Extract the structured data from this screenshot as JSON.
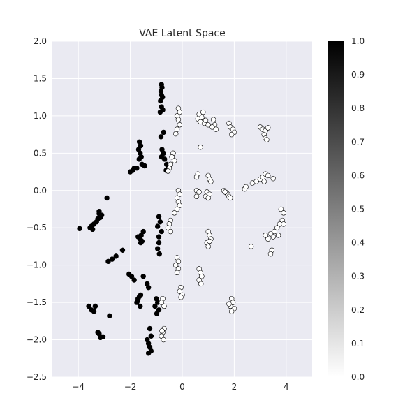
{
  "chart_data": {
    "type": "scatter",
    "title": "VAE Latent Space",
    "xlabel": "",
    "ylabel": "",
    "xlim": [
      -5,
      5
    ],
    "ylim": [
      -2.5,
      2.0
    ],
    "xticks": [
      -4,
      -2,
      0,
      2,
      4
    ],
    "xtick_labels": [
      "−4",
      "−2",
      "0",
      "2",
      "4"
    ],
    "yticks": [
      2.0,
      1.5,
      1.0,
      0.5,
      0.0,
      -0.5,
      -1.0,
      -1.5,
      -2.0,
      -2.5
    ],
    "ytick_labels": [
      "2.0",
      "1.5",
      "1.0",
      "0.5",
      "0.0",
      "−0.5",
      "−1.0",
      "−1.5",
      "−2.0",
      "−2.5"
    ],
    "grid": true,
    "plot_background": "#eaeaf2",
    "colorbar": {
      "range": [
        0.0,
        1.0
      ],
      "ticks": [
        "1.0",
        "0.9",
        "0.8",
        "0.7",
        "0.6",
        "0.5",
        "0.4",
        "0.3",
        "0.2",
        "0.1",
        "0.0"
      ],
      "colormap": "gray_r",
      "low_color": "#ffffff",
      "high_color": "#000000"
    },
    "series": [
      {
        "value": 1.0,
        "color": "#000000",
        "points": [
          [
            -0.8,
            1.42
          ],
          [
            -0.78,
            1.38
          ],
          [
            -0.82,
            1.33
          ],
          [
            -0.8,
            1.28
          ],
          [
            -0.76,
            1.25
          ],
          [
            -0.84,
            1.2
          ],
          [
            -0.8,
            1.12
          ],
          [
            -0.75,
            1.08
          ],
          [
            -0.85,
            1.05
          ],
          [
            -0.72,
            0.78
          ],
          [
            -0.82,
            0.72
          ],
          [
            -1.65,
            0.65
          ],
          [
            -1.6,
            0.6
          ],
          [
            -1.68,
            0.55
          ],
          [
            -1.62,
            0.5
          ],
          [
            -1.58,
            0.45
          ],
          [
            -1.66,
            0.42
          ],
          [
            -1.55,
            0.35
          ],
          [
            -1.45,
            0.33
          ],
          [
            -1.75,
            0.3
          ],
          [
            -1.85,
            0.3
          ],
          [
            -2.0,
            0.25
          ],
          [
            -1.9,
            0.27
          ],
          [
            -0.78,
            0.55
          ],
          [
            -0.72,
            0.5
          ],
          [
            -0.8,
            0.45
          ],
          [
            -0.68,
            0.42
          ],
          [
            -0.6,
            0.35
          ],
          [
            -0.55,
            0.3
          ],
          [
            -0.62,
            0.27
          ],
          [
            -3.2,
            -0.28
          ],
          [
            -3.1,
            -0.33
          ],
          [
            -3.25,
            -0.38
          ],
          [
            -3.3,
            -0.42
          ],
          [
            -3.4,
            -0.45
          ],
          [
            -3.5,
            -0.48
          ],
          [
            -3.55,
            -0.5
          ],
          [
            -3.45,
            -0.52
          ],
          [
            -3.15,
            -0.36
          ],
          [
            -3.2,
            -0.31
          ],
          [
            -2.9,
            -0.1
          ],
          [
            -3.95,
            -0.51
          ],
          [
            -0.9,
            -0.35
          ],
          [
            -0.85,
            -0.42
          ],
          [
            -0.95,
            -0.48
          ],
          [
            -0.8,
            -0.55
          ],
          [
            -0.9,
            -0.62
          ],
          [
            -1.5,
            -0.55
          ],
          [
            -1.58,
            -0.6
          ],
          [
            -1.62,
            -0.65
          ],
          [
            -1.7,
            -0.62
          ],
          [
            -1.55,
            -0.68
          ],
          [
            -1.6,
            -0.7
          ],
          [
            -2.3,
            -0.8
          ],
          [
            -2.55,
            -0.88
          ],
          [
            -2.7,
            -0.92
          ],
          [
            -2.85,
            -0.95
          ],
          [
            -0.9,
            -0.7
          ],
          [
            -0.95,
            -0.78
          ],
          [
            -0.88,
            -0.85
          ],
          [
            -2.05,
            -1.12
          ],
          [
            -1.95,
            -1.15
          ],
          [
            -1.85,
            -1.2
          ],
          [
            -1.5,
            -1.15
          ],
          [
            -1.35,
            -1.25
          ],
          [
            -1.3,
            -1.3
          ],
          [
            -1.65,
            -1.42
          ],
          [
            -1.7,
            -1.45
          ],
          [
            -1.75,
            -1.5
          ],
          [
            -1.62,
            -1.55
          ],
          [
            -1.72,
            -1.48
          ],
          [
            -1.6,
            -1.4
          ],
          [
            -1.0,
            -1.45
          ],
          [
            -0.95,
            -1.5
          ],
          [
            -1.05,
            -1.55
          ],
          [
            -0.9,
            -1.6
          ],
          [
            -0.98,
            -1.65
          ],
          [
            -3.6,
            -1.55
          ],
          [
            -3.5,
            -1.6
          ],
          [
            -3.4,
            -1.62
          ],
          [
            -3.35,
            -1.55
          ],
          [
            -2.8,
            -1.68
          ],
          [
            -3.2,
            -1.92
          ],
          [
            -3.15,
            -1.97
          ],
          [
            -3.05,
            -1.96
          ],
          [
            -3.25,
            -1.9
          ],
          [
            -1.25,
            -1.85
          ],
          [
            -1.2,
            -1.95
          ],
          [
            -1.3,
            -2.05
          ],
          [
            -1.25,
            -2.1
          ],
          [
            -1.3,
            -2.18
          ],
          [
            -1.2,
            -2.15
          ],
          [
            -1.35,
            -2.0
          ]
        ]
      },
      {
        "value": 0.0,
        "color": "#ffffff",
        "points": [
          [
            -0.15,
            1.1
          ],
          [
            -0.1,
            1.05
          ],
          [
            -0.2,
            1.0
          ],
          [
            -0.15,
            0.95
          ],
          [
            -0.1,
            0.88
          ],
          [
            -0.2,
            0.82
          ],
          [
            -0.25,
            0.76
          ],
          [
            0.65,
            1.02
          ],
          [
            0.75,
            0.98
          ],
          [
            0.8,
            1.05
          ],
          [
            0.6,
            0.96
          ],
          [
            0.7,
            0.92
          ],
          [
            0.85,
            0.9
          ],
          [
            1.0,
            0.88
          ],
          [
            0.9,
            0.94
          ],
          [
            1.2,
            0.95
          ],
          [
            1.25,
            0.88
          ],
          [
            1.3,
            0.82
          ],
          [
            1.15,
            0.85
          ],
          [
            1.8,
            0.9
          ],
          [
            1.85,
            0.85
          ],
          [
            1.95,
            0.82
          ],
          [
            2.0,
            0.78
          ],
          [
            1.9,
            0.75
          ],
          [
            3.0,
            0.85
          ],
          [
            3.1,
            0.82
          ],
          [
            3.2,
            0.8
          ],
          [
            3.3,
            0.84
          ],
          [
            3.15,
            0.75
          ],
          [
            3.2,
            0.7
          ],
          [
            3.25,
            0.68
          ],
          [
            -0.35,
            0.5
          ],
          [
            -0.4,
            0.45
          ],
          [
            -0.3,
            0.4
          ],
          [
            -0.45,
            0.35
          ],
          [
            -0.5,
            0.3
          ],
          [
            -0.55,
            0.26
          ],
          [
            0.7,
            0.58
          ],
          [
            0.6,
            0.22
          ],
          [
            0.55,
            0.18
          ],
          [
            1.0,
            0.2
          ],
          [
            1.05,
            0.15
          ],
          [
            1.1,
            0.12
          ],
          [
            3.0,
            0.15
          ],
          [
            3.1,
            0.18
          ],
          [
            3.2,
            0.22
          ],
          [
            3.3,
            0.2
          ],
          [
            3.5,
            0.16
          ],
          [
            2.85,
            0.12
          ],
          [
            2.7,
            0.1
          ],
          [
            3.15,
            0.12
          ],
          [
            -0.15,
            0.0
          ],
          [
            -0.1,
            -0.05
          ],
          [
            -0.2,
            -0.1
          ],
          [
            -0.15,
            -0.15
          ],
          [
            -0.1,
            -0.2
          ],
          [
            -0.2,
            -0.25
          ],
          [
            -0.3,
            -0.3
          ],
          [
            0.55,
            0.0
          ],
          [
            0.6,
            -0.05
          ],
          [
            0.55,
            -0.08
          ],
          [
            0.65,
            -0.02
          ],
          [
            0.95,
            -0.02
          ],
          [
            1.05,
            -0.05
          ],
          [
            0.9,
            -0.08
          ],
          [
            1.0,
            -0.1
          ],
          [
            1.6,
            0.0
          ],
          [
            1.7,
            -0.03
          ],
          [
            1.75,
            -0.05
          ],
          [
            1.8,
            -0.08
          ],
          [
            1.85,
            -0.1
          ],
          [
            1.65,
            -0.02
          ],
          [
            2.4,
            0.02
          ],
          [
            2.45,
            0.05
          ],
          [
            3.8,
            -0.25
          ],
          [
            3.9,
            -0.3
          ],
          [
            3.85,
            -0.4
          ],
          [
            3.75,
            -0.45
          ],
          [
            3.65,
            -0.5
          ],
          [
            3.7,
            -0.6
          ],
          [
            3.55,
            -0.55
          ],
          [
            3.5,
            -0.62
          ],
          [
            3.4,
            -0.58
          ],
          [
            3.3,
            -0.65
          ],
          [
            3.2,
            -0.6
          ],
          [
            3.9,
            -0.45
          ],
          [
            3.45,
            -0.8
          ],
          [
            3.4,
            -0.85
          ],
          [
            2.65,
            -0.75
          ],
          [
            -0.45,
            -0.4
          ],
          [
            -0.5,
            -0.45
          ],
          [
            -0.55,
            -0.5
          ],
          [
            -0.45,
            -0.55
          ],
          [
            1.0,
            -0.55
          ],
          [
            1.05,
            -0.6
          ],
          [
            1.1,
            -0.65
          ],
          [
            0.95,
            -0.7
          ],
          [
            1.0,
            -0.75
          ],
          [
            1.05,
            -0.68
          ],
          [
            -0.2,
            -0.9
          ],
          [
            -0.15,
            -0.95
          ],
          [
            -0.25,
            -1.0
          ],
          [
            -0.15,
            -1.05
          ],
          [
            -0.2,
            -1.1
          ],
          [
            0.65,
            -1.05
          ],
          [
            0.7,
            -1.1
          ],
          [
            0.75,
            -1.15
          ],
          [
            0.65,
            -1.2
          ],
          [
            0.72,
            -1.25
          ],
          [
            -0.05,
            -1.3
          ],
          [
            -0.1,
            -1.35
          ],
          [
            0.0,
            -1.4
          ],
          [
            -0.05,
            -1.43
          ],
          [
            1.9,
            -1.45
          ],
          [
            1.95,
            -1.5
          ],
          [
            1.85,
            -1.55
          ],
          [
            2.0,
            -1.58
          ],
          [
            1.9,
            -1.62
          ],
          [
            1.8,
            -1.52
          ],
          [
            -0.75,
            -1.45
          ],
          [
            -0.8,
            -1.5
          ],
          [
            -0.7,
            -1.55
          ],
          [
            -0.7,
            -1.85
          ],
          [
            -0.75,
            -1.9
          ],
          [
            -0.8,
            -1.95
          ],
          [
            -0.72,
            -2.0
          ],
          [
            -0.78,
            -1.88
          ]
        ]
      }
    ]
  }
}
